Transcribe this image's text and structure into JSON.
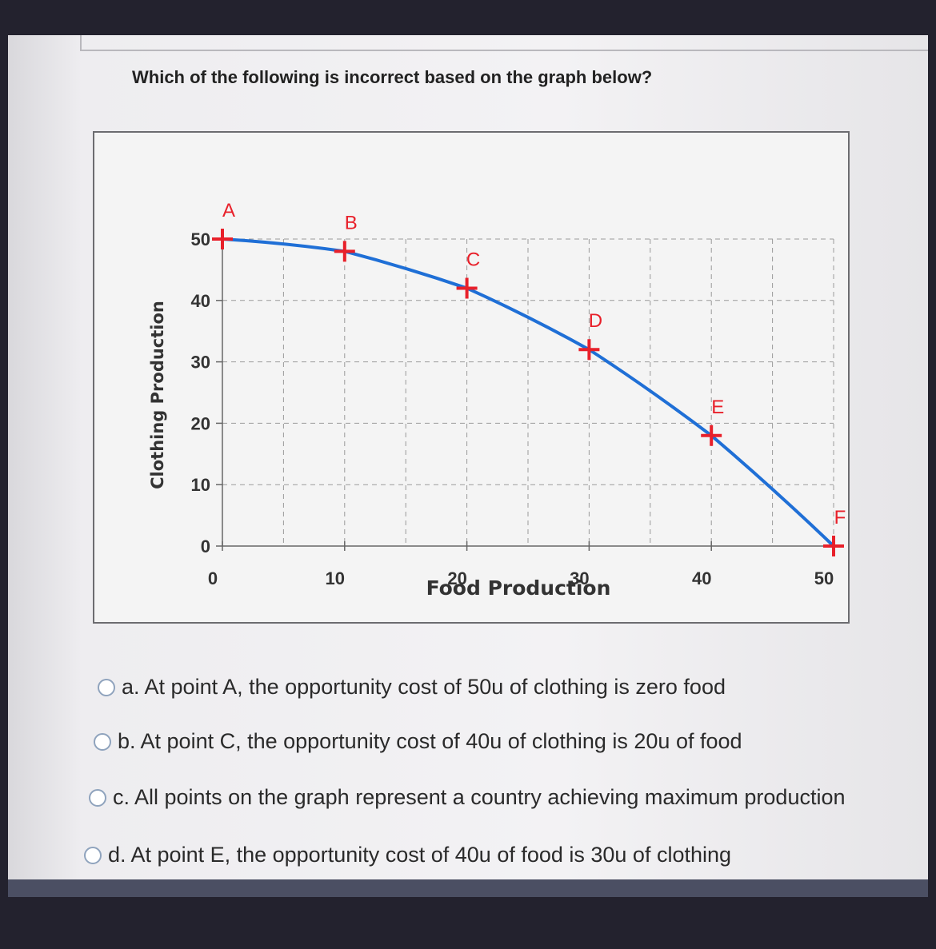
{
  "question": "Which of the following is incorrect based on the graph below?",
  "chart_data": {
    "type": "line",
    "xlabel": "Food Production",
    "ylabel": "Clothing Production",
    "xlim": [
      0,
      50
    ],
    "ylim": [
      0,
      50
    ],
    "x_ticks": [
      "0",
      "10",
      "20",
      "30",
      "40",
      "50"
    ],
    "y_ticks": [
      "0",
      "10",
      "20",
      "30",
      "40",
      "50"
    ],
    "grid": true,
    "series": [
      {
        "x": [
          0,
          10,
          20,
          30,
          40,
          50
        ],
        "y": [
          50,
          48,
          42,
          32,
          18,
          0
        ],
        "color": "#1f6fd6"
      }
    ],
    "points": [
      {
        "label": "A",
        "x": 0,
        "y": 50
      },
      {
        "label": "B",
        "x": 10,
        "y": 48
      },
      {
        "label": "C",
        "x": 20,
        "y": 42
      },
      {
        "label": "D",
        "x": 30,
        "y": 32
      },
      {
        "label": "E",
        "x": 40,
        "y": 18
      },
      {
        "label": "F",
        "x": 50,
        "y": 0
      }
    ],
    "point_color": "#e8202a"
  },
  "options": [
    {
      "id": "a",
      "text": "a. At point A, the opportunity cost of 50u of clothing is zero food"
    },
    {
      "id": "b",
      "text": "b. At point C, the opportunity cost of 40u of clothing is 20u of food"
    },
    {
      "id": "c",
      "text": "c. All points on the graph represent a country achieving maximum production"
    },
    {
      "id": "d",
      "text": "d. At point E, the opportunity cost of 40u of food is 30u of clothing"
    }
  ]
}
